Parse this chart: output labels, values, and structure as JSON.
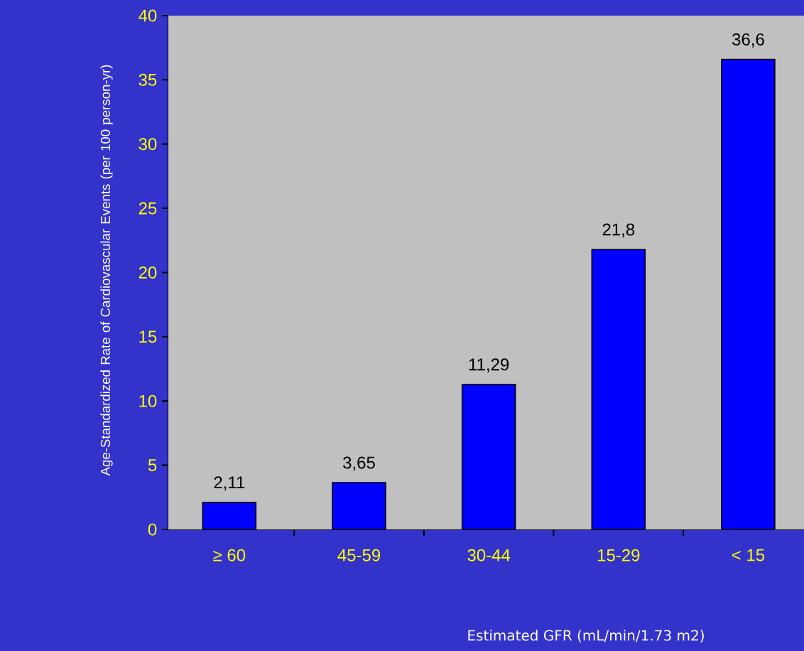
{
  "chart_data": {
    "type": "bar",
    "xlabel": "Estimated GFR (mL/min/1.73 m2)",
    "ylabel": "Age-Standardized Rate of Cardiovascular Events (per 100 person-yr)",
    "categories": [
      "≥ 60",
      "45-59",
      "30-44",
      "15-29",
      "< 15"
    ],
    "values": [
      2.11,
      3.65,
      11.29,
      21.8,
      36.6
    ],
    "value_labels": [
      "2,11",
      "3,65",
      "11,29",
      "21,8",
      "36,6"
    ],
    "color": "#0000ff",
    "ylim": [
      0,
      40
    ],
    "yticks": [
      0,
      5,
      10,
      15,
      20,
      25,
      30,
      35,
      40
    ]
  }
}
